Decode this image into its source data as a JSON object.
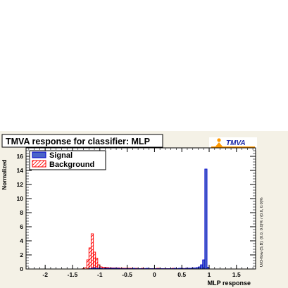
{
  "chart_data": {
    "type": "histogram",
    "title": "TMVA response for classifier: MLP",
    "xlabel": "MLP response",
    "ylabel": "Normalized",
    "xlim": [
      -2.35,
      1.85
    ],
    "ylim": [
      0,
      17.2
    ],
    "x_ticks": [
      -2,
      -1.5,
      -1,
      -0.5,
      0,
      0.5,
      1,
      1.5
    ],
    "x_tick_labels": [
      "-2",
      "-1.5",
      "-1",
      "-0.5",
      "0",
      "0.5",
      "1",
      "1.5"
    ],
    "y_ticks": [
      0,
      2,
      4,
      6,
      8,
      10,
      12,
      14,
      16
    ],
    "y_tick_labels": [
      "0",
      "2",
      "4",
      "6",
      "8",
      "10",
      "12",
      "14",
      "16"
    ],
    "bin_width": 0.042,
    "legend": {
      "placement": "top-left",
      "entries": [
        "Signal",
        "Background"
      ]
    },
    "overflow_label": "U/O-flow (S,B): (0.0, 0.0)% / (0.0, 0.0)%",
    "series": [
      {
        "name": "Signal",
        "style": "filled",
        "color": "#4a64c8",
        "line_color": "#0000cc",
        "bins": [
          [
            -1.2,
            0.05
          ],
          [
            -1.16,
            0.1
          ],
          [
            -1.12,
            0.15
          ],
          [
            -1.08,
            0.1
          ],
          [
            -1.04,
            0.1
          ],
          [
            -1.0,
            0.1
          ],
          [
            -0.96,
            0.05
          ],
          [
            -0.92,
            0.1
          ],
          [
            -0.88,
            0.1
          ],
          [
            -0.84,
            0.1
          ],
          [
            -0.8,
            0.1
          ],
          [
            -0.76,
            0.1
          ],
          [
            -0.72,
            0.1
          ],
          [
            -0.68,
            0.1
          ],
          [
            -0.64,
            0.05
          ],
          [
            -0.6,
            0.05
          ],
          [
            -0.56,
            0.05
          ],
          [
            -0.52,
            0.05
          ],
          [
            -0.48,
            0.05
          ],
          [
            -0.44,
            0.05
          ],
          [
            -0.4,
            0.1
          ],
          [
            -0.36,
            0.05
          ],
          [
            -0.32,
            0.05
          ],
          [
            -0.28,
            0.05
          ],
          [
            -0.24,
            0.05
          ],
          [
            -0.2,
            0.05
          ],
          [
            -0.16,
            0.1
          ],
          [
            -0.12,
            0.05
          ],
          [
            -0.08,
            0.05
          ],
          [
            -0.04,
            0.05
          ],
          [
            0.0,
            0.05
          ],
          [
            0.04,
            0.05
          ],
          [
            0.08,
            0.05
          ],
          [
            0.12,
            0.05
          ],
          [
            0.16,
            0.05
          ],
          [
            0.2,
            0.05
          ],
          [
            0.24,
            0.05
          ],
          [
            0.28,
            0.05
          ],
          [
            0.32,
            0.05
          ],
          [
            0.36,
            0.1
          ],
          [
            0.4,
            0.05
          ],
          [
            0.44,
            0.1
          ],
          [
            0.48,
            0.1
          ],
          [
            0.52,
            0.05
          ],
          [
            0.56,
            0.1
          ],
          [
            0.6,
            0.1
          ],
          [
            0.64,
            0.1
          ],
          [
            0.68,
            0.15
          ],
          [
            0.72,
            0.15
          ],
          [
            0.76,
            0.2
          ],
          [
            0.8,
            0.3
          ],
          [
            0.84,
            0.6
          ],
          [
            0.88,
            1.3
          ],
          [
            0.92,
            14.2
          ],
          [
            0.96,
            0.25
          ]
        ]
      },
      {
        "name": "Background",
        "style": "hatched",
        "color": "#ff0000",
        "bins": [
          [
            -1.32,
            0.05
          ],
          [
            -1.28,
            0.2
          ],
          [
            -1.24,
            1.3
          ],
          [
            -1.2,
            3.0
          ],
          [
            -1.16,
            5.0
          ],
          [
            -1.12,
            2.4
          ],
          [
            -1.08,
            1.5
          ],
          [
            -1.04,
            0.6
          ],
          [
            -1.0,
            0.3
          ],
          [
            -0.96,
            0.25
          ],
          [
            -0.92,
            0.2
          ],
          [
            -0.88,
            0.2
          ],
          [
            -0.84,
            0.15
          ],
          [
            -0.8,
            0.15
          ],
          [
            -0.76,
            0.15
          ],
          [
            -0.72,
            0.1
          ],
          [
            -0.68,
            0.15
          ],
          [
            -0.64,
            0.1
          ],
          [
            -0.6,
            0.1
          ],
          [
            -0.56,
            0.1
          ],
          [
            -0.52,
            0.1
          ],
          [
            -0.48,
            0.1
          ],
          [
            -0.44,
            0.1
          ],
          [
            -0.4,
            0.05
          ],
          [
            -0.36,
            0.1
          ],
          [
            -0.32,
            0.05
          ],
          [
            -0.28,
            0.05
          ],
          [
            -0.24,
            0.1
          ],
          [
            -0.2,
            0.05
          ],
          [
            -0.16,
            0.05
          ],
          [
            -0.12,
            0.05
          ],
          [
            -0.08,
            0.05
          ],
          [
            -0.04,
            0.05
          ],
          [
            0.0,
            0.05
          ],
          [
            0.04,
            0.1
          ],
          [
            0.08,
            0.05
          ],
          [
            0.12,
            0.05
          ],
          [
            0.16,
            0.05
          ],
          [
            0.2,
            0.05
          ],
          [
            0.24,
            0.05
          ],
          [
            0.28,
            0.05
          ],
          [
            0.32,
            0.1
          ],
          [
            0.36,
            0.05
          ],
          [
            0.4,
            0.05
          ],
          [
            0.44,
            0.05
          ],
          [
            0.48,
            0.1
          ],
          [
            0.52,
            0.05
          ],
          [
            0.56,
            0.1
          ],
          [
            0.6,
            0.1
          ],
          [
            0.64,
            0.05
          ],
          [
            0.68,
            0.1
          ],
          [
            0.72,
            0.1
          ],
          [
            0.76,
            0.1
          ],
          [
            0.8,
            0.15
          ],
          [
            0.84,
            0.15
          ],
          [
            0.88,
            0.2
          ],
          [
            0.92,
            0.25
          ],
          [
            0.96,
            0.1
          ]
        ]
      }
    ]
  },
  "logo": {
    "text": "TMVA",
    "color": "#1e2aa8",
    "accent": "#ff9900"
  }
}
